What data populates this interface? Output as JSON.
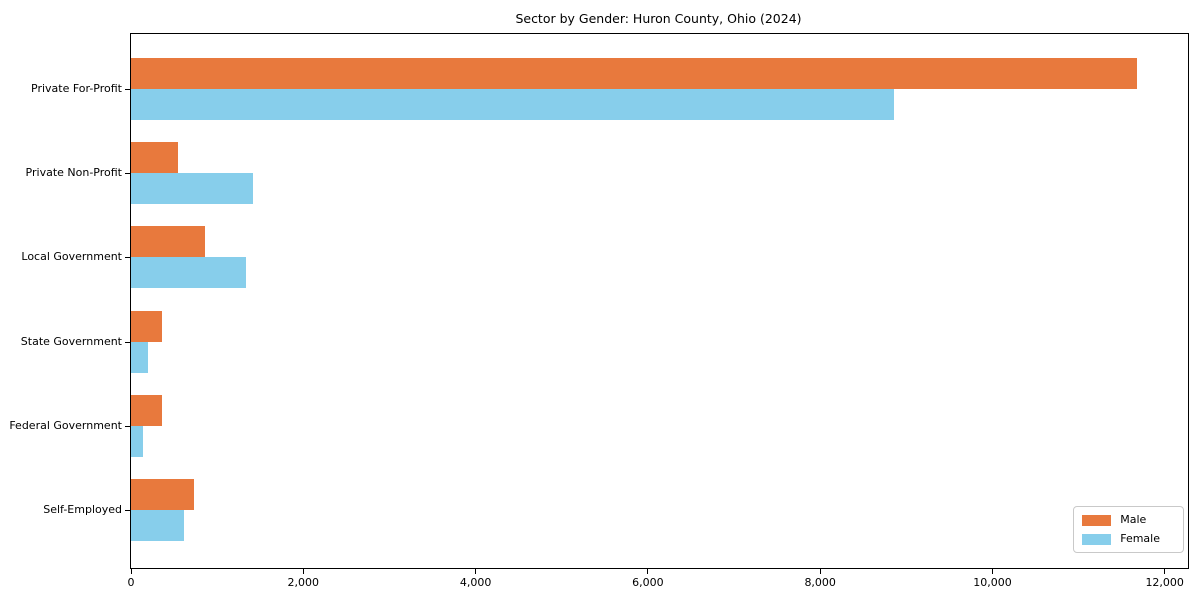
{
  "chart_data": {
    "type": "bar",
    "orientation": "horizontal",
    "title": "Sector by Gender: Huron County, Ohio (2024)",
    "categories": [
      "Private For-Profit",
      "Private Non-Profit",
      "Local Government",
      "State Government",
      "Federal Government",
      "Self-Employed"
    ],
    "series": [
      {
        "name": "Male",
        "color": "#e8793d",
        "values": [
          11680,
          550,
          860,
          360,
          355,
          735
        ]
      },
      {
        "name": "Female",
        "color": "#87ceeb",
        "values": [
          8860,
          1420,
          1340,
          200,
          140,
          615
        ]
      }
    ],
    "xlabel": "",
    "ylabel": "",
    "xlim": [
      0,
      12270
    ],
    "xticks": [
      0,
      2000,
      4000,
      6000,
      8000,
      10000,
      12000
    ],
    "xtick_labels": [
      "0",
      "2,000",
      "4,000",
      "6,000",
      "8,000",
      "10,000",
      "12,000"
    ],
    "legend_position": "lower right",
    "grid": false,
    "axis_color": "#000000"
  }
}
